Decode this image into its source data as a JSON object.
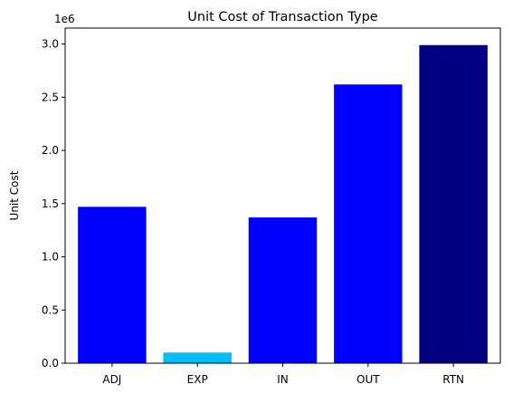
{
  "chart_data": {
    "type": "bar",
    "title": "Unit Cost of Transaction Type",
    "xlabel": "",
    "ylabel": "Unit Cost",
    "y_offset_label": "1e6",
    "ylim": [
      0,
      3150000
    ],
    "yticks": [
      0,
      500000,
      1000000,
      1500000,
      2000000,
      2500000,
      3000000
    ],
    "ytick_labels": [
      "0.0",
      "0.5",
      "1.0",
      "1.5",
      "2.0",
      "2.5",
      "3.0"
    ],
    "categories": [
      "ADJ",
      "EXP",
      "IN",
      "OUT",
      "RTN"
    ],
    "values": [
      1470000,
      100000,
      1370000,
      2620000,
      2990000
    ],
    "colors": [
      "#0000ff",
      "#00bfff",
      "#0000ff",
      "#0000ff",
      "#000080"
    ],
    "grid": false,
    "legend": "none"
  }
}
